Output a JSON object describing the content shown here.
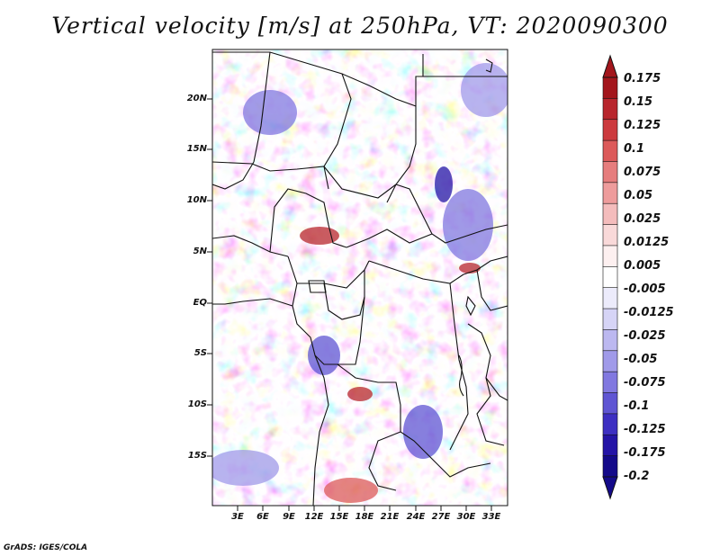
{
  "title": "Vertical velocity [m/s] at 250hPa, VT: 2020090300",
  "credit": "GrADS: IGES/COLA",
  "map": {
    "region": "Central Africa",
    "lat_labels": [
      "20N",
      "15N",
      "10N",
      "5N",
      "EQ",
      "5S",
      "10S",
      "15S"
    ],
    "lon_labels": [
      "3E",
      "6E",
      "9E",
      "12E",
      "15E",
      "18E",
      "21E",
      "24E",
      "27E",
      "30E",
      "33E"
    ]
  },
  "colorbar": {
    "labels": [
      "0.175",
      "0.15",
      "0.125",
      "0.1",
      "0.075",
      "0.05",
      "0.025",
      "0.0125",
      "0.005",
      "-0.005",
      "-0.0125",
      "-0.025",
      "-0.05",
      "-0.075",
      "-0.1",
      "-0.125",
      "-0.175",
      "-0.2"
    ],
    "colors": [
      "#a3161c",
      "#b8262d",
      "#cc3a3e",
      "#dc5a5a",
      "#e67d7d",
      "#ee9c9c",
      "#f4bcbc",
      "#f9d9d9",
      "#fdf0f0",
      "#ffffff",
      "#ecebfb",
      "#d6d4f6",
      "#bcb8f0",
      "#a09ae9",
      "#8178e0",
      "#5f55d3",
      "#3d2fc2",
      "#2414a6",
      "#140a8a"
    ],
    "top_arrow_color": "#a3161c",
    "bottom_arrow_color": "#140a8a"
  }
}
